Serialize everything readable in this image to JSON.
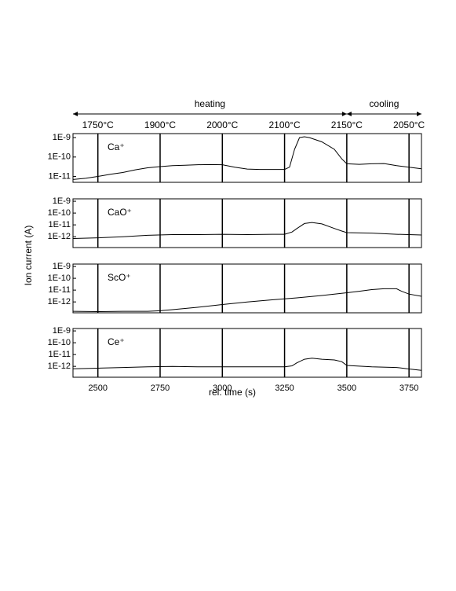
{
  "figure": {
    "xlabel": "rel. time (s)",
    "ylabel": "Ion current (A)",
    "xlim": [
      2400,
      3800
    ],
    "xticks": [
      2500,
      2750,
      3000,
      3250,
      3500,
      3750
    ],
    "phases": [
      {
        "label": "heating",
        "from": 2400,
        "to": 3500
      },
      {
        "label": "cooling",
        "from": 3500,
        "to": 3800
      }
    ],
    "markers": [
      {
        "x": 2500,
        "label": "1750°C"
      },
      {
        "x": 2750,
        "label": "1900°C"
      },
      {
        "x": 3000,
        "label": "2000°C"
      },
      {
        "x": 3250,
        "label": "2100°C"
      },
      {
        "x": 3500,
        "label": "2150°C"
      },
      {
        "x": 3750,
        "label": "2050°C"
      }
    ]
  },
  "chart_data": [
    {
      "type": "line",
      "label": "Ca⁺",
      "log_y": true,
      "color": "#000000",
      "ylim": [
        5e-12,
        1.6e-09
      ],
      "yticks": [
        {
          "value": 1e-09,
          "label": "1E-9"
        },
        {
          "value": 1e-10,
          "label": "1E-10"
        },
        {
          "value": 1e-11,
          "label": "1E-11"
        }
      ],
      "x": [
        2400,
        2450,
        2500,
        2550,
        2600,
        2650,
        2700,
        2750,
        2800,
        2850,
        2900,
        2950,
        3000,
        3050,
        3100,
        3150,
        3200,
        3250,
        3270,
        3290,
        3310,
        3330,
        3350,
        3400,
        3450,
        3480,
        3500,
        3550,
        3600,
        3650,
        3700,
        3750,
        3800
      ],
      "values": [
        7e-12,
        8e-12,
        1e-11,
        1.3e-11,
        1.6e-11,
        2.2e-11,
        2.8e-11,
        3.2e-11,
        3.6e-11,
        3.8e-11,
        4e-11,
        4.1e-11,
        4e-11,
        3e-11,
        2.4e-11,
        2.3e-11,
        2.3e-11,
        2.3e-11,
        3e-11,
        2.5e-10,
        1e-09,
        1.1e-09,
        1e-09,
        6e-10,
        2.5e-10,
        8e-11,
        4.5e-11,
        4.2e-11,
        4.5e-11,
        4.6e-11,
        3.6e-11,
        3e-11,
        2.5e-11
      ]
    },
    {
      "type": "line",
      "label": "CaO⁺",
      "log_y": true,
      "color": "#000000",
      "ylim": [
        1.2e-13,
        1.6e-09
      ],
      "yticks": [
        {
          "value": 1e-09,
          "label": "1E-9"
        },
        {
          "value": 1e-10,
          "label": "1E-10"
        },
        {
          "value": 1e-11,
          "label": "1E-11"
        },
        {
          "value": 1e-12,
          "label": "1E-12"
        }
      ],
      "x": [
        2400,
        2500,
        2600,
        2700,
        2800,
        2900,
        3000,
        3100,
        3200,
        3250,
        3280,
        3300,
        3330,
        3360,
        3400,
        3450,
        3480,
        3500,
        3600,
        3700,
        3800
      ],
      "values": [
        7e-13,
        8e-13,
        1e-12,
        1.3e-12,
        1.5e-12,
        1.5e-12,
        1.6e-12,
        1.5e-12,
        1.6e-12,
        1.6e-12,
        2.5e-12,
        5e-12,
        1.3e-11,
        1.6e-11,
        1.2e-11,
        5e-12,
        3e-12,
        2.2e-12,
        2e-12,
        1.6e-12,
        1.4e-12
      ]
    },
    {
      "type": "line",
      "label": "ScO⁺",
      "log_y": true,
      "color": "#000000",
      "ylim": [
        1.2e-13,
        1.6e-09
      ],
      "yticks": [
        {
          "value": 1e-09,
          "label": "1E-9"
        },
        {
          "value": 1e-10,
          "label": "1E-10"
        },
        {
          "value": 1e-11,
          "label": "1E-11"
        },
        {
          "value": 1e-12,
          "label": "1E-12"
        }
      ],
      "x": [
        2400,
        2500,
        2600,
        2700,
        2750,
        2800,
        2900,
        3000,
        3100,
        3200,
        3300,
        3400,
        3500,
        3550,
        3600,
        3650,
        3700,
        3720,
        3750,
        3800
      ],
      "values": [
        1.6e-13,
        1.5e-13,
        1.6e-13,
        1.6e-13,
        1.8e-13,
        2.2e-13,
        3.5e-13,
        6e-13,
        1e-12,
        1.5e-12,
        2.2e-12,
        3.5e-12,
        6e-12,
        8e-12,
        1.1e-11,
        1.3e-11,
        1.3e-11,
        8e-12,
        4.6e-12,
        3e-12
      ]
    },
    {
      "type": "line",
      "label": "Ce⁺",
      "log_y": true,
      "color": "#000000",
      "ylim": [
        1.2e-13,
        1.6e-09
      ],
      "yticks": [
        {
          "value": 1e-09,
          "label": "1E-9"
        },
        {
          "value": 1e-10,
          "label": "1E-10"
        },
        {
          "value": 1e-11,
          "label": "1E-11"
        },
        {
          "value": 1e-12,
          "label": "1E-12"
        }
      ],
      "x": [
        2400,
        2500,
        2600,
        2700,
        2800,
        2900,
        3000,
        3100,
        3200,
        3250,
        3280,
        3300,
        3330,
        3360,
        3400,
        3450,
        3480,
        3500,
        3600,
        3700,
        3750,
        3800
      ],
      "values": [
        6.3e-13,
        7e-13,
        8e-13,
        9e-13,
        1e-12,
        9e-13,
        9e-13,
        9e-13,
        9e-13,
        9e-13,
        1.1e-12,
        2e-12,
        4e-12,
        5e-12,
        4e-12,
        3.5e-12,
        2.5e-12,
        1.2e-12,
        9e-13,
        8e-13,
        6e-13,
        4.6e-13
      ]
    }
  ]
}
